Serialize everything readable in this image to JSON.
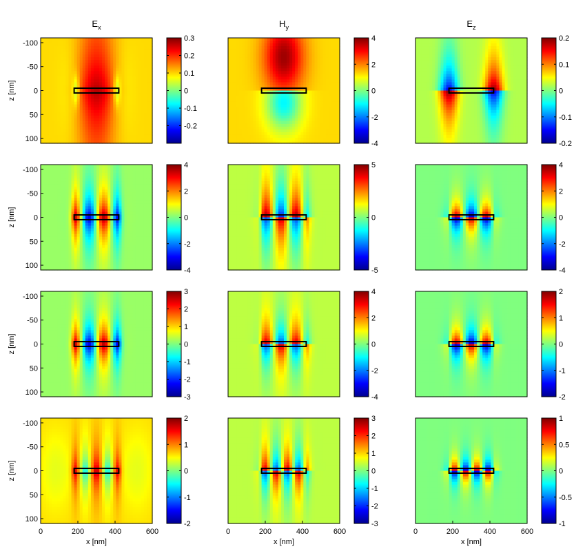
{
  "figure": {
    "column_titles": [
      {
        "base": "E",
        "sub": "x"
      },
      {
        "base": "H",
        "sub": "y"
      },
      {
        "base": "E",
        "sub": "z"
      }
    ],
    "ylabel": "z [nm]",
    "xlabel": "x [nm]",
    "x_ticks": [
      "0",
      "200",
      "400",
      "600"
    ],
    "y_ticks": [
      "-100",
      "-50",
      "0",
      "50",
      "100"
    ]
  },
  "chart_data": {
    "type": "heatmap",
    "colormap": "jet",
    "xlim": [
      0,
      600
    ],
    "ylim": [
      -110,
      110
    ],
    "y_reversed": true,
    "x_ticks": [
      0,
      200,
      400,
      600
    ],
    "y_ticks": [
      -100,
      -50,
      0,
      50,
      100
    ],
    "structure_rect": {
      "x": [
        180,
        420
      ],
      "z": [
        -5,
        5
      ]
    },
    "rows": [
      {
        "mode_lobes": 1,
        "cbar_ticks": [
          {
            "min": -0.3,
            "max": 0.3,
            "ticks": [
              "0.3",
              "0.2",
              "0.1",
              "0",
              "-0.1",
              "-0.2"
            ],
            "tick_values": [
              0.3,
              0.2,
              0.1,
              0,
              -0.1,
              -0.2
            ]
          },
          {
            "min": -4,
            "max": 4,
            "ticks": [
              "4",
              "2",
              "0",
              "-2",
              "-4"
            ],
            "tick_values": [
              4,
              2,
              0,
              -2,
              -4
            ]
          },
          {
            "min": -0.2,
            "max": 0.2,
            "ticks": [
              "0.2",
              "0.1",
              "0",
              "-0.1",
              "-0.2"
            ],
            "tick_values": [
              0.2,
              0.1,
              0,
              -0.1,
              -0.2
            ]
          }
        ]
      },
      {
        "mode_lobes": 3,
        "cbar_ticks": [
          {
            "min": -4,
            "max": 4,
            "ticks": [
              "4",
              "2",
              "0",
              "-2",
              "-4"
            ],
            "tick_values": [
              4,
              2,
              0,
              -2,
              -4
            ]
          },
          {
            "min": -5,
            "max": 5,
            "ticks": [
              "5",
              "0",
              "-5"
            ],
            "tick_values": [
              5,
              0,
              -5
            ]
          },
          {
            "min": -4,
            "max": 4,
            "ticks": [
              "4",
              "2",
              "0",
              "-2",
              "-4"
            ],
            "tick_values": [
              4,
              2,
              0,
              -2,
              -4
            ]
          }
        ]
      },
      {
        "mode_lobes": 3,
        "cbar_ticks": [
          {
            "min": -3,
            "max": 3,
            "ticks": [
              "3",
              "2",
              "1",
              "0",
              "-1",
              "-2",
              "-3"
            ],
            "tick_values": [
              3,
              2,
              1,
              0,
              -1,
              -2,
              -3
            ]
          },
          {
            "min": -4,
            "max": 4,
            "ticks": [
              "4",
              "2",
              "0",
              "-2",
              "-4"
            ],
            "tick_values": [
              4,
              2,
              0,
              -2,
              -4
            ]
          },
          {
            "min": -2,
            "max": 2,
            "ticks": [
              "2",
              "1",
              "0",
              "-1",
              "-2"
            ],
            "tick_values": [
              2,
              1,
              0,
              -1,
              -2
            ]
          }
        ]
      },
      {
        "mode_lobes": 4,
        "cbar_ticks": [
          {
            "min": -2,
            "max": 2,
            "ticks": [
              "2",
              "1",
              "0",
              "-1",
              "-2"
            ],
            "tick_values": [
              2,
              1,
              0,
              -1,
              -2
            ]
          },
          {
            "min": -3,
            "max": 3,
            "ticks": [
              "3",
              "2",
              "1",
              "0",
              "-1",
              "-2",
              "-3"
            ],
            "tick_values": [
              3,
              2,
              1,
              0,
              -1,
              -2,
              -3
            ]
          },
          {
            "min": -1,
            "max": 1,
            "ticks": [
              "1",
              "0.5",
              "0",
              "-0.5",
              "-1"
            ],
            "tick_values": [
              1,
              0.5,
              0,
              -0.5,
              -1
            ]
          }
        ]
      }
    ]
  }
}
